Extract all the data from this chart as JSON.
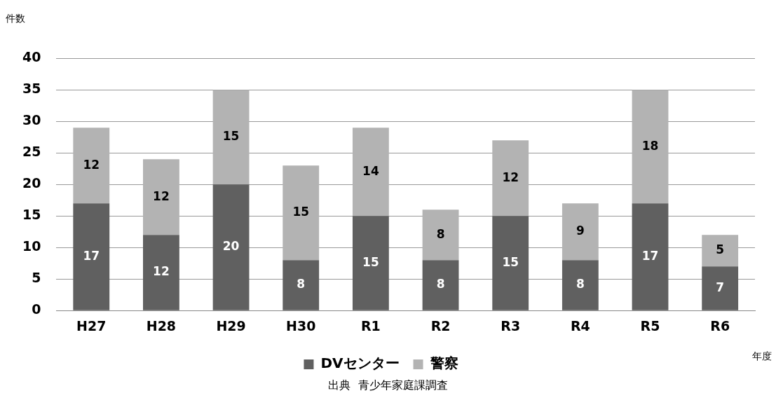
{
  "chart_data": {
    "type": "bar",
    "stacked": true,
    "ylabel": "件数",
    "xlabel": "年度",
    "categories": [
      "H27",
      "H28",
      "H29",
      "H30",
      "R1",
      "R2",
      "R3",
      "R4",
      "R5",
      "R6"
    ],
    "series": [
      {
        "name": "DVセンター",
        "color": "#606060",
        "values": [
          17,
          12,
          20,
          8,
          15,
          8,
          15,
          8,
          17,
          7
        ]
      },
      {
        "name": "警察",
        "color": "#b3b3b3",
        "values": [
          12,
          12,
          15,
          15,
          14,
          8,
          12,
          9,
          18,
          5
        ]
      }
    ],
    "ylim": [
      0,
      40
    ],
    "yticks": [
      0,
      5,
      10,
      15,
      20,
      25,
      30,
      35,
      40
    ],
    "grid": "y",
    "legend": "bottom",
    "data_labels": true,
    "annotations": [
      "出典  青少年家庭課調査"
    ]
  }
}
